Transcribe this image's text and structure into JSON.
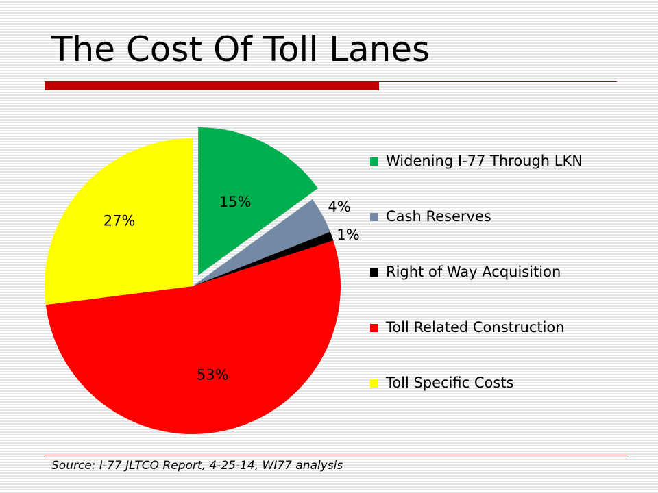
{
  "slide": {
    "title": "The Cost Of Toll Lanes",
    "source": "Source: I-77 JLTCO Report, 4-25-14, WI77 analysis"
  },
  "chart_data": {
    "type": "pie",
    "legend_position": "right",
    "slices": [
      {
        "label": "Widening I-77 Through LKN",
        "value": 15,
        "data_label": "15%",
        "color": "#00b050",
        "exploded": true
      },
      {
        "label": "Cash Reserves",
        "value": 4,
        "data_label": "4%",
        "color": "#7489a3",
        "exploded": false
      },
      {
        "label": "Right of Way Acquisition",
        "value": 1,
        "data_label": "1%",
        "color": "#000000",
        "exploded": false
      },
      {
        "label": "Toll Related Construction",
        "value": 53,
        "data_label": "53%",
        "color": "#ff0000",
        "exploded": false
      },
      {
        "label": "Toll Specific Costs",
        "value": 27,
        "data_label": "27%",
        "color": "#ffff00",
        "exploded": false
      }
    ]
  }
}
